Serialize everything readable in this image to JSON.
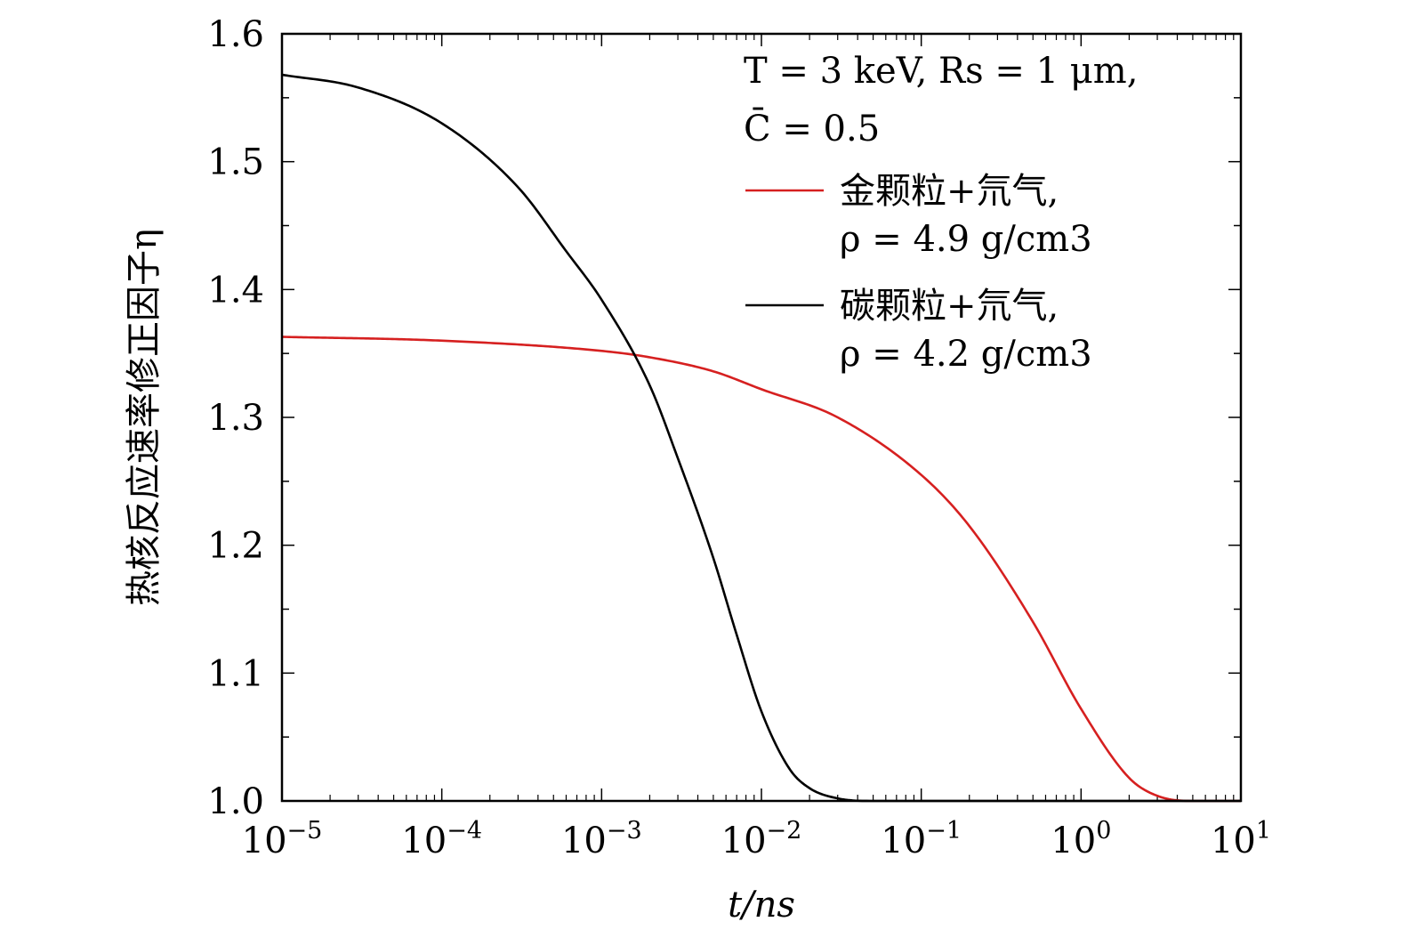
{
  "chart_data": {
    "type": "line",
    "x_scale": "log",
    "xlabel": "t/ns",
    "ylabel": "热核反应速率修正因子η",
    "xlim": [
      1e-05,
      10
    ],
    "ylim": [
      1.0,
      1.6
    ],
    "x_tick_labels": [
      {
        "base": "10",
        "exp": "−5",
        "value": 1e-05
      },
      {
        "base": "10",
        "exp": "−4",
        "value": 0.0001
      },
      {
        "base": "10",
        "exp": "−3",
        "value": 0.001
      },
      {
        "base": "10",
        "exp": "−2",
        "value": 0.01
      },
      {
        "base": "10",
        "exp": "−1",
        "value": 0.1
      },
      {
        "base": "10",
        "exp": "0",
        "value": 1
      },
      {
        "base": "10",
        "exp": "1",
        "value": 10
      }
    ],
    "y_tick_labels": [
      "1.0",
      "1.1",
      "1.2",
      "1.3",
      "1.4",
      "1.5",
      "1.6"
    ],
    "y_tick_values": [
      1.0,
      1.1,
      1.2,
      1.3,
      1.4,
      1.5,
      1.6
    ],
    "annotation": {
      "line1": "T = 3 keV, Rs = 1 μm,",
      "line2": "C̄ = 0.5"
    },
    "series": [
      {
        "name": "金颗粒+氘气,",
        "sub": "ρ = 4.9 g/cm3",
        "color": "#d62020",
        "x": [
          1e-05,
          0.0001,
          0.001,
          0.002,
          0.005,
          0.01,
          0.03,
          0.1,
          0.2,
          0.5,
          1,
          2,
          3,
          5,
          10
        ],
        "y": [
          1.363,
          1.36,
          1.352,
          1.347,
          1.336,
          1.322,
          1.3,
          1.255,
          1.215,
          1.14,
          1.072,
          1.018,
          1.004,
          1.0,
          1.0
        ]
      },
      {
        "name": "碳颗粒+氘气,",
        "sub": "ρ = 4.2 g/cm3",
        "color": "#000000",
        "x": [
          1e-05,
          3e-05,
          0.0001,
          0.0003,
          0.0006,
          0.001,
          0.002,
          0.003,
          0.005,
          0.007,
          0.01,
          0.015,
          0.02,
          0.03,
          0.05,
          0.1,
          10
        ],
        "y": [
          1.568,
          1.558,
          1.53,
          1.48,
          1.43,
          1.392,
          1.325,
          1.268,
          1.19,
          1.13,
          1.07,
          1.025,
          1.01,
          1.002,
          1.0,
          1.0,
          1.0
        ]
      }
    ]
  }
}
